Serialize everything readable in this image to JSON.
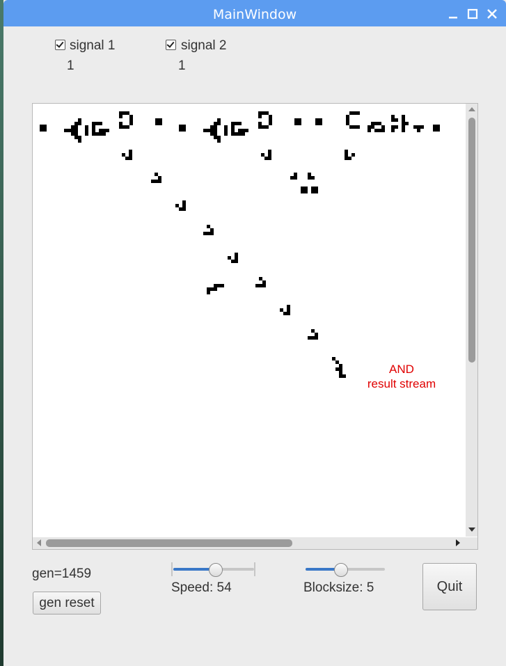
{
  "window": {
    "title": "MainWindow"
  },
  "controls": {
    "signal1": {
      "label": "signal 1",
      "checked": true,
      "value": "1"
    },
    "signal2": {
      "label": "signal 2",
      "checked": true,
      "value": "1"
    }
  },
  "canvas": {
    "annotation_line1": "AND",
    "annotation_line2": "result stream",
    "cell_color": "#000000",
    "annotation_color": "#e00000"
  },
  "footer": {
    "gen_text": "gen=1459",
    "gen_reset_label": "gen reset",
    "speed_label": "Speed: 54",
    "speed_value": 54,
    "blocksize_label": "Blocksize: 5",
    "blocksize_value": 5,
    "quit_label": "Quit"
  },
  "colors": {
    "titlebar": "#5c9cf0",
    "slider_fill": "#3a78c8",
    "window_bg": "#ececec"
  }
}
